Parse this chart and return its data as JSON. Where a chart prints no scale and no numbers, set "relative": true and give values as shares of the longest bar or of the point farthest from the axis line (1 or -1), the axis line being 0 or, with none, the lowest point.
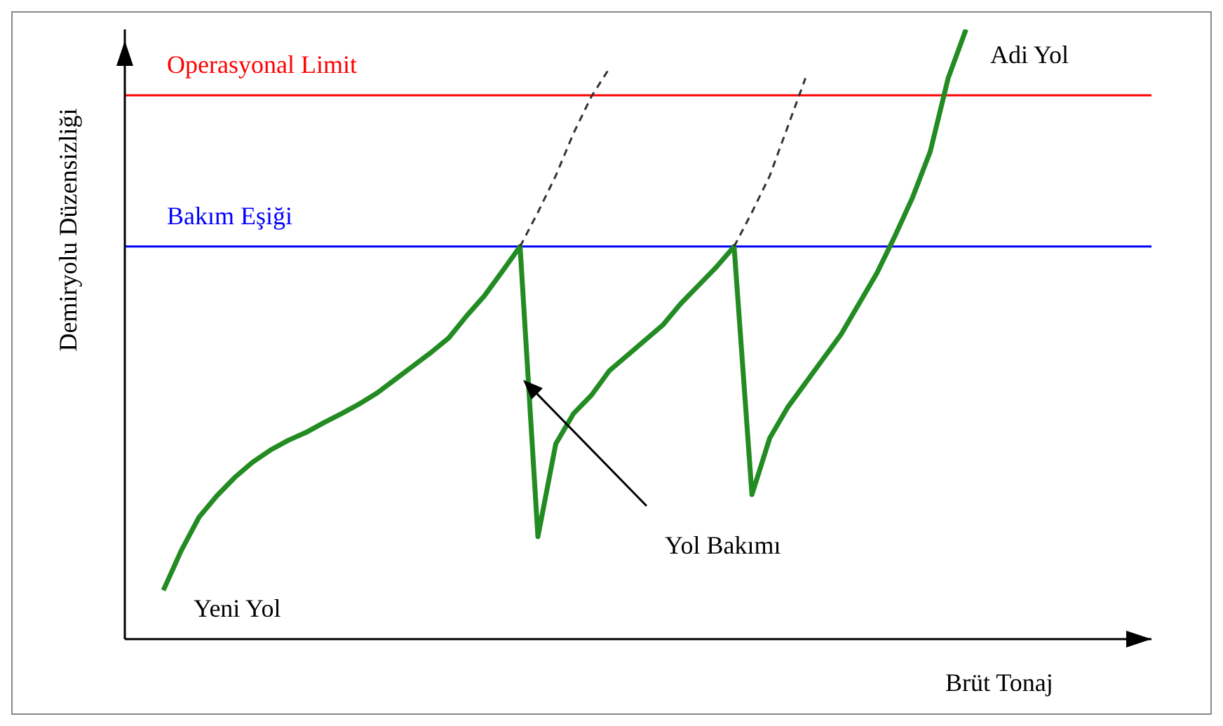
{
  "chart_data": {
    "type": "line",
    "relative": true,
    "xlabel": "Brüt Tonaj",
    "ylabel": "Demiryolu Düzensizliği",
    "marker": "none",
    "categories": [
      null,
      null,
      null,
      null,
      null,
      null,
      null,
      null,
      null,
      null,
      null,
      null,
      null,
      null,
      null,
      null,
      null,
      null,
      null,
      null,
      null,
      null,
      null,
      null,
      null,
      null,
      null,
      null,
      null,
      null,
      null,
      null,
      null,
      null,
      null,
      null,
      null,
      null,
      null,
      null,
      null,
      null,
      null,
      null,
      null,
      null
    ],
    "series": [
      {
        "color": "#228b22",
        "line_style": "solid",
        "values": [
          0.08,
          0.145,
          0.2,
          0.235,
          0.265,
          0.29,
          0.31,
          0.326,
          0.339,
          0.355,
          0.37,
          0.386,
          0.404,
          0.426,
          0.448,
          0.47,
          0.494,
          0.53,
          0.563,
          0.603,
          0.644,
          0.168,
          0.32,
          0.37,
          0.4,
          0.44,
          0.465,
          0.49,
          0.515,
          0.55,
          0.58,
          0.61,
          0.644,
          0.237,
          0.33,
          0.38,
          0.42,
          0.46,
          0.5,
          0.55,
          0.6,
          0.66,
          0.724,
          0.8,
          0.92,
          1
        ]
      },
      {
        "color": "#333333",
        "line_style": "dashed",
        "values": [
          null,
          null,
          null,
          null,
          null,
          null,
          null,
          null,
          null,
          null,
          null,
          null,
          null,
          null,
          null,
          null,
          null,
          null,
          null,
          null,
          0.644,
          0.7,
          0.76,
          0.83,
          0.89,
          0.936,
          null,
          null,
          null,
          null,
          null,
          null,
          0.644,
          0.7,
          0.76,
          0.84,
          0.92,
          null,
          null,
          null,
          null,
          null,
          null,
          null,
          null,
          null
        ]
      }
    ],
    "ref_lines": [
      {
        "axis": "y",
        "value": 0.892,
        "label": "Operasyonal Limit",
        "color": "#ff0000"
      },
      {
        "axis": "y",
        "value": 0.644,
        "label": "Bakım Eşiği",
        "color": "#0000ff"
      }
    ],
    "annotations": [
      "Adi Yol",
      "Yeni Yol",
      "Yol Bakımı"
    ]
  }
}
